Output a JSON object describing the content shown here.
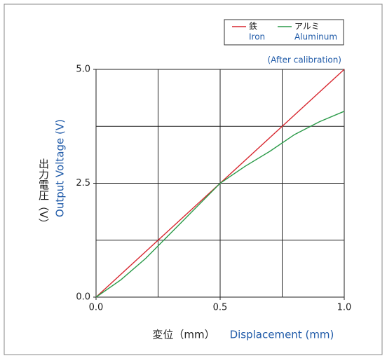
{
  "chart_data": {
    "type": "line",
    "annotation": "(After calibration)",
    "x_label": "変位（mm）",
    "x_label_en": "Displacement (mm)",
    "y_label": "出力電圧（V）",
    "y_label_en": "Output Voltage (V)",
    "x": [
      0,
      0.1,
      0.2,
      0.3,
      0.4,
      0.5,
      0.6,
      0.7,
      0.8,
      0.9,
      1.0
    ],
    "series": [
      {
        "name": "鉄",
        "name_en": "Iron",
        "color": "#d7262e",
        "values": [
          0,
          0.5,
          1.0,
          1.5,
          2.0,
          2.5,
          3.0,
          3.5,
          4.0,
          4.5,
          5.0
        ]
      },
      {
        "name": "アルミ",
        "name_en": "Aluminum",
        "color": "#2a9a48",
        "values": [
          0,
          0.38,
          0.85,
          1.4,
          1.95,
          2.5,
          2.87,
          3.2,
          3.57,
          3.85,
          4.08
        ]
      }
    ],
    "xlim": [
      0,
      1
    ],
    "ylim": [
      0,
      5
    ],
    "xticks": [
      {
        "value": 0,
        "label": "0.0"
      },
      {
        "value": 0.5,
        "label": "0.5"
      },
      {
        "value": 1,
        "label": "1.0"
      }
    ],
    "yticks": [
      {
        "value": 0,
        "label": "0.0"
      },
      {
        "value": 2.5,
        "label": "2.5"
      },
      {
        "value": 5,
        "label": "5.0"
      }
    ],
    "xgrid": [
      0.25,
      0.5,
      0.75
    ],
    "ygrid": [
      1.25,
      2.5,
      3.75
    ],
    "grid": true,
    "legend": "upper right"
  }
}
